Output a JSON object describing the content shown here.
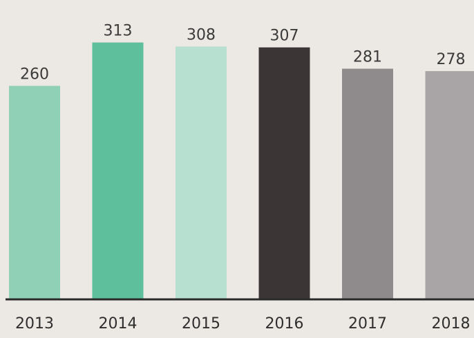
{
  "chart_data": {
    "type": "bar",
    "categories": [
      "2013",
      "2014",
      "2015",
      "2016",
      "2017",
      "2018"
    ],
    "values": [
      260,
      313,
      308,
      307,
      281,
      278
    ],
    "bar_colors": [
      "#8fd0b6",
      "#5dbf9c",
      "#b7e0d0",
      "#3b3536",
      "#8f8a8b",
      "#a9a5a6"
    ],
    "axis_color": "#2a2a2a",
    "data_labels": true,
    "grid": false,
    "legend": "none",
    "title": "",
    "xlabel": "",
    "ylabel": ""
  }
}
